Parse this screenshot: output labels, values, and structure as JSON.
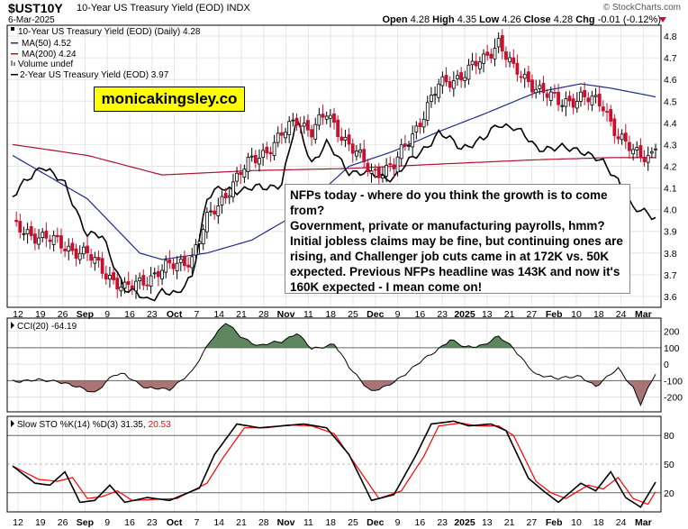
{
  "header": {
    "ticker": "$UST10Y",
    "title": "10-Year US Treasury Yield (EOD)",
    "exchange": "INDX",
    "date": "6-Mar-2025",
    "brand": "© StockCharts.com",
    "ohlc": {
      "open_label": "Open",
      "open": "4.28",
      "high_label": "High",
      "high": "4.35",
      "low_label": "Low",
      "low": "4.26",
      "close_label": "Close",
      "close": "4.28",
      "chg_label": "Chg",
      "chg": "-0.01 (-0.12%)"
    }
  },
  "legend": {
    "main": "10-Year US Treasury Yield (EOD) (Daily) 4.28",
    "ma50": "MA(50) 4.52",
    "ma200": "MA(200) 4.24",
    "volume": "Volume undef",
    "ust2": "2-Year US Treasury Yield (EOD) 3.97"
  },
  "watermark": "monicakingsley.co",
  "annotation": {
    "p1": "NFPs today - where do you think the growth is to come from?",
    "p2": "Government, private or manufacturing payrolls, hmm? Initial jobless claims may be fine, but continuing ones are rising, and Challenger job cuts came in at 172K vs. 50K expected. Previous NFPs headline was 143K and now it's 160K expected - I mean come on!"
  },
  "panels": {
    "cci_label": "CCI(20) -64.19",
    "sto_label_a": "Slow STO %K(14) %D(3) 31.35,",
    "sto_label_b": "20.53"
  },
  "colors": {
    "up": "#000000",
    "down": "#c8102e",
    "ma50": "#1f2a8c",
    "ma200": "#b01030",
    "cci_pos": "#4e7a4e",
    "cci_neg": "#a06565",
    "sto_d": "#ff0000"
  },
  "chart_data": [
    {
      "type": "candlestick",
      "ylim": [
        3.55,
        4.85
      ],
      "yticks": [
        "3.6",
        "3.7",
        "3.8",
        "3.9",
        "4.0",
        "4.1",
        "4.2",
        "4.3",
        "4.4",
        "4.5",
        "4.6",
        "4.7",
        "4.8"
      ],
      "xticks": [
        "12",
        "19",
        "26",
        "Sep",
        "9",
        "16",
        "23",
        "Oct",
        "7",
        "14",
        "21",
        "28",
        "Nov",
        "11",
        "18",
        "25",
        "Dec",
        "9",
        "16",
        "23",
        "2025",
        "13",
        "21",
        "27",
        "Feb",
        "10",
        "18",
        "24",
        "Mar"
      ],
      "x_start": "2024-08-12",
      "x_end": "2025-03-06",
      "close_anchors": [
        [
          0,
          3.92
        ],
        [
          10,
          3.86
        ],
        [
          20,
          3.79
        ],
        [
          30,
          3.63
        ],
        [
          40,
          3.72
        ],
        [
          48,
          3.78
        ],
        [
          52,
          3.95
        ],
        [
          58,
          4.1
        ],
        [
          64,
          4.23
        ],
        [
          70,
          4.3
        ],
        [
          76,
          4.42
        ],
        [
          80,
          4.36
        ],
        [
          84,
          4.44
        ],
        [
          90,
          4.3
        ],
        [
          96,
          4.17
        ],
        [
          102,
          4.2
        ],
        [
          108,
          4.38
        ],
        [
          114,
          4.57
        ],
        [
          120,
          4.62
        ],
        [
          126,
          4.69
        ],
        [
          130,
          4.78
        ],
        [
          134,
          4.64
        ],
        [
          140,
          4.57
        ],
        [
          146,
          4.49
        ],
        [
          152,
          4.52
        ],
        [
          158,
          4.48
        ],
        [
          162,
          4.34
        ],
        [
          166,
          4.26
        ],
        [
          170,
          4.25
        ],
        [
          172,
          4.28
        ]
      ],
      "ma50_anchors": [
        [
          0,
          4.25
        ],
        [
          20,
          4.05
        ],
        [
          34,
          3.8
        ],
        [
          40,
          3.77
        ],
        [
          52,
          3.8
        ],
        [
          64,
          3.86
        ],
        [
          76,
          3.98
        ],
        [
          90,
          4.2
        ],
        [
          102,
          4.27
        ],
        [
          114,
          4.36
        ],
        [
          126,
          4.44
        ],
        [
          140,
          4.54
        ],
        [
          152,
          4.58
        ],
        [
          160,
          4.56
        ],
        [
          172,
          4.52
        ]
      ],
      "ma200_anchors": [
        [
          0,
          4.3
        ],
        [
          20,
          4.25
        ],
        [
          40,
          4.16
        ],
        [
          52,
          4.17
        ],
        [
          64,
          4.18
        ],
        [
          90,
          4.19
        ],
        [
          114,
          4.21
        ],
        [
          140,
          4.23
        ],
        [
          160,
          4.24
        ],
        [
          172,
          4.24
        ]
      ],
      "ust2_anchors": [
        [
          0,
          4.06
        ],
        [
          8,
          4.21
        ],
        [
          14,
          4.11
        ],
        [
          20,
          3.89
        ],
        [
          24,
          3.87
        ],
        [
          30,
          3.64
        ],
        [
          36,
          3.58
        ],
        [
          40,
          3.63
        ],
        [
          44,
          3.6
        ],
        [
          48,
          3.7
        ],
        [
          52,
          4.05
        ],
        [
          56,
          4.1
        ],
        [
          62,
          4.09
        ],
        [
          66,
          4.1
        ],
        [
          72,
          4.12
        ],
        [
          76,
          4.41
        ],
        [
          80,
          4.22
        ],
        [
          84,
          4.3
        ],
        [
          90,
          4.18
        ],
        [
          96,
          4.16
        ],
        [
          102,
          4.15
        ],
        [
          108,
          4.25
        ],
        [
          114,
          4.35
        ],
        [
          120,
          4.29
        ],
        [
          126,
          4.32
        ],
        [
          130,
          4.4
        ],
        [
          134,
          4.38
        ],
        [
          140,
          4.29
        ],
        [
          146,
          4.28
        ],
        [
          152,
          4.28
        ],
        [
          158,
          4.21
        ],
        [
          162,
          4.14
        ],
        [
          166,
          4.0
        ],
        [
          172,
          3.97
        ]
      ]
    },
    {
      "type": "line",
      "name": "CCI(20)",
      "ylim": [
        -290,
        280
      ],
      "yticks": [
        "200",
        "100",
        "0",
        "-100",
        "-200"
      ],
      "anchors": [
        [
          0,
          -100
        ],
        [
          12,
          -100
        ],
        [
          17,
          -140
        ],
        [
          22,
          -170
        ],
        [
          27,
          -70
        ],
        [
          30,
          -60
        ],
        [
          36,
          -150
        ],
        [
          42,
          -150
        ],
        [
          48,
          -50
        ],
        [
          53,
          150
        ],
        [
          57,
          250
        ],
        [
          61,
          170
        ],
        [
          66,
          110
        ],
        [
          72,
          140
        ],
        [
          76,
          190
        ],
        [
          80,
          90
        ],
        [
          86,
          125
        ],
        [
          90,
          -20
        ],
        [
          96,
          -165
        ],
        [
          100,
          -140
        ],
        [
          106,
          -40
        ],
        [
          112,
          60
        ],
        [
          117,
          150
        ],
        [
          121,
          100
        ],
        [
          126,
          120
        ],
        [
          130,
          165
        ],
        [
          134,
          100
        ],
        [
          140,
          -70
        ],
        [
          146,
          -80
        ],
        [
          152,
          -80
        ],
        [
          156,
          -130
        ],
        [
          162,
          -30
        ],
        [
          166,
          -140
        ],
        [
          168,
          -240
        ],
        [
          172,
          -60
        ]
      ]
    },
    {
      "type": "line",
      "name": "Slow STO",
      "ylim": [
        0,
        100
      ],
      "yticks": [
        "80",
        "50",
        "20"
      ],
      "k_anchors": [
        [
          0,
          48
        ],
        [
          6,
          30
        ],
        [
          10,
          28
        ],
        [
          14,
          42
        ],
        [
          18,
          10
        ],
        [
          22,
          12
        ],
        [
          26,
          28
        ],
        [
          30,
          10
        ],
        [
          36,
          15
        ],
        [
          42,
          12
        ],
        [
          50,
          25
        ],
        [
          54,
          60
        ],
        [
          60,
          92
        ],
        [
          66,
          88
        ],
        [
          72,
          90
        ],
        [
          78,
          92
        ],
        [
          84,
          88
        ],
        [
          90,
          60
        ],
        [
          96,
          12
        ],
        [
          102,
          18
        ],
        [
          108,
          60
        ],
        [
          112,
          92
        ],
        [
          118,
          95
        ],
        [
          122,
          90
        ],
        [
          128,
          92
        ],
        [
          132,
          85
        ],
        [
          138,
          35
        ],
        [
          142,
          22
        ],
        [
          146,
          10
        ],
        [
          152,
          30
        ],
        [
          156,
          22
        ],
        [
          160,
          42
        ],
        [
          164,
          15
        ],
        [
          168,
          5
        ],
        [
          172,
          31
        ]
      ],
      "d_anchors": [
        [
          0,
          48
        ],
        [
          7,
          34
        ],
        [
          12,
          32
        ],
        [
          16,
          36
        ],
        [
          20,
          14
        ],
        [
          24,
          16
        ],
        [
          28,
          22
        ],
        [
          32,
          12
        ],
        [
          38,
          13
        ],
        [
          44,
          14
        ],
        [
          52,
          30
        ],
        [
          56,
          55
        ],
        [
          62,
          88
        ],
        [
          68,
          88
        ],
        [
          74,
          91
        ],
        [
          80,
          90
        ],
        [
          86,
          82
        ],
        [
          92,
          48
        ],
        [
          98,
          14
        ],
        [
          104,
          22
        ],
        [
          110,
          58
        ],
        [
          114,
          90
        ],
        [
          120,
          93
        ],
        [
          124,
          90
        ],
        [
          130,
          90
        ],
        [
          134,
          80
        ],
        [
          140,
          32
        ],
        [
          144,
          20
        ],
        [
          148,
          14
        ],
        [
          154,
          28
        ],
        [
          158,
          24
        ],
        [
          162,
          36
        ],
        [
          166,
          14
        ],
        [
          170,
          8
        ],
        [
          172,
          21
        ]
      ]
    }
  ]
}
